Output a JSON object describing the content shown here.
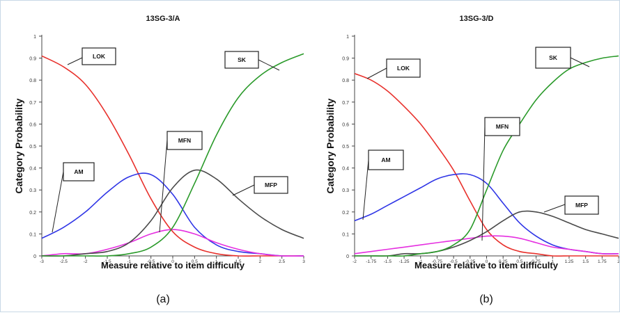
{
  "panel_labels": [
    "(a)",
    "(b)"
  ],
  "chart_data": [
    {
      "type": "line",
      "title": "13SG-3/A",
      "xlabel": "Measure relative to item difficulty",
      "ylabel": "Category Probability",
      "xlim": [
        -3,
        3
      ],
      "ylim": [
        0,
        1
      ],
      "x_ticks": [
        "-3",
        "-2.5",
        "-2",
        "-1.5",
        "-1",
        "-0.5",
        "0",
        "0.5",
        "1",
        "1.5",
        "2",
        "2.5",
        "3"
      ],
      "y_ticks": [
        "0",
        "0.1",
        "0.2",
        "0.3",
        "0.4",
        "0.5",
        "0.6",
        "0.7",
        "0.8",
        "0.9",
        "1"
      ],
      "grid": false,
      "colors": {
        "LOK": "#e8312c",
        "AM": "#2f35e6",
        "MFN": "#e52fe0",
        "MFP": "#4a4a4a",
        "SK": "#2a9a2a"
      },
      "series": [
        {
          "name": "LOK",
          "x": [
            -3,
            -2.5,
            -2,
            -1.5,
            -1,
            -0.5,
            0,
            0.5,
            1,
            1.5,
            2,
            2.5,
            3
          ],
          "values": [
            0.91,
            0.86,
            0.78,
            0.64,
            0.46,
            0.26,
            0.11,
            0.04,
            0.01,
            0.0,
            0.0,
            0.0,
            0.0
          ]
        },
        {
          "name": "AM",
          "x": [
            -3,
            -2.5,
            -2,
            -1.5,
            -1,
            -0.5,
            0,
            0.5,
            1,
            1.5,
            2,
            2.5,
            3
          ],
          "values": [
            0.08,
            0.13,
            0.2,
            0.29,
            0.36,
            0.37,
            0.28,
            0.13,
            0.05,
            0.02,
            0.01,
            0.0,
            0.0
          ]
        },
        {
          "name": "MFN",
          "x": [
            -3,
            -2.5,
            -2,
            -1.5,
            -1,
            -0.5,
            0,
            0.5,
            1,
            1.5,
            2,
            2.5,
            3
          ],
          "values": [
            0.0,
            0.01,
            0.01,
            0.03,
            0.06,
            0.1,
            0.12,
            0.1,
            0.06,
            0.03,
            0.01,
            0.0,
            0.0
          ]
        },
        {
          "name": "MFP",
          "x": [
            -3,
            -2.5,
            -2,
            -1.5,
            -1,
            -0.5,
            0,
            0.5,
            1,
            1.5,
            2,
            2.5,
            3
          ],
          "values": [
            0.0,
            0.0,
            0.01,
            0.02,
            0.06,
            0.16,
            0.31,
            0.39,
            0.35,
            0.26,
            0.18,
            0.12,
            0.08
          ]
        },
        {
          "name": "SK",
          "x": [
            -3,
            -2.5,
            -2,
            -1.5,
            -1,
            -0.5,
            0,
            0.5,
            1,
            1.5,
            2,
            2.5,
            3
          ],
          "values": [
            0.0,
            0.0,
            0.0,
            0.0,
            0.01,
            0.04,
            0.13,
            0.33,
            0.55,
            0.72,
            0.82,
            0.88,
            0.92
          ]
        }
      ],
      "annotations": [
        "LOK",
        "AM",
        "MFN",
        "MFP",
        "SK"
      ]
    },
    {
      "type": "line",
      "title": "13SG-3/D",
      "xlabel": "Measure relative to item difficulty",
      "ylabel": "Category Probability",
      "xlim": [
        -2,
        2
      ],
      "ylim": [
        0,
        1
      ],
      "x_ticks": [
        "-2",
        "-1.75",
        "-1.5",
        "-1.25",
        "-1",
        "-0.75",
        "-0.5",
        "-0.25",
        "0",
        "0.25",
        "0.5",
        "0.75",
        "1",
        "1.25",
        "1.5",
        "1.75",
        "2"
      ],
      "y_ticks": [
        "0",
        "0.1",
        "0.2",
        "0.3",
        "0.4",
        "0.5",
        "0.6",
        "0.7",
        "0.8",
        "0.9",
        "1"
      ],
      "grid": false,
      "colors": {
        "LOK": "#e8312c",
        "AM": "#2f35e6",
        "MFN": "#e52fe0",
        "MFP": "#4a4a4a",
        "SK": "#2a9a2a"
      },
      "series": [
        {
          "name": "LOK",
          "x": [
            -2,
            -1.75,
            -1.5,
            -1.25,
            -1,
            -0.75,
            -0.5,
            -0.25,
            0,
            0.25,
            0.5,
            0.75,
            1,
            1.25,
            1.5,
            1.75,
            2
          ],
          "values": [
            0.83,
            0.8,
            0.75,
            0.68,
            0.6,
            0.5,
            0.39,
            0.25,
            0.12,
            0.05,
            0.02,
            0.01,
            0.0,
            0.0,
            0.0,
            0.0,
            0.0
          ]
        },
        {
          "name": "AM",
          "x": [
            -2,
            -1.75,
            -1.5,
            -1.25,
            -1,
            -0.75,
            -0.5,
            -0.25,
            0,
            0.25,
            0.5,
            0.75,
            1,
            1.25,
            1.5,
            1.75,
            2
          ],
          "values": [
            0.16,
            0.19,
            0.23,
            0.27,
            0.31,
            0.35,
            0.37,
            0.37,
            0.33,
            0.24,
            0.15,
            0.09,
            0.05,
            0.03,
            0.02,
            0.01,
            0.01
          ]
        },
        {
          "name": "MFN",
          "x": [
            -2,
            -1.75,
            -1.5,
            -1.25,
            -1,
            -0.75,
            -0.5,
            -0.25,
            0,
            0.25,
            0.5,
            0.75,
            1,
            1.25,
            1.5,
            1.75,
            2
          ],
          "values": [
            0.01,
            0.02,
            0.03,
            0.04,
            0.05,
            0.06,
            0.07,
            0.08,
            0.09,
            0.09,
            0.08,
            0.06,
            0.04,
            0.03,
            0.02,
            0.01,
            0.01
          ]
        },
        {
          "name": "MFP",
          "x": [
            -2,
            -1.75,
            -1.5,
            -1.25,
            -1,
            -0.75,
            -0.5,
            -0.25,
            0,
            0.25,
            0.5,
            0.75,
            1,
            1.25,
            1.5,
            1.75,
            2
          ],
          "values": [
            0.0,
            0.0,
            0.0,
            0.01,
            0.01,
            0.02,
            0.04,
            0.07,
            0.11,
            0.16,
            0.2,
            0.2,
            0.18,
            0.15,
            0.12,
            0.1,
            0.08
          ]
        },
        {
          "name": "SK",
          "x": [
            -2,
            -1.75,
            -1.5,
            -1.25,
            -1,
            -0.75,
            -0.5,
            -0.25,
            0,
            0.25,
            0.5,
            0.75,
            1,
            1.25,
            1.5,
            1.75,
            2
          ],
          "values": [
            0.0,
            0.0,
            0.0,
            0.0,
            0.01,
            0.02,
            0.05,
            0.12,
            0.3,
            0.48,
            0.6,
            0.71,
            0.79,
            0.85,
            0.88,
            0.9,
            0.91
          ]
        }
      ],
      "annotations": [
        "LOK",
        "AM",
        "MFN",
        "MFP",
        "SK"
      ]
    }
  ]
}
